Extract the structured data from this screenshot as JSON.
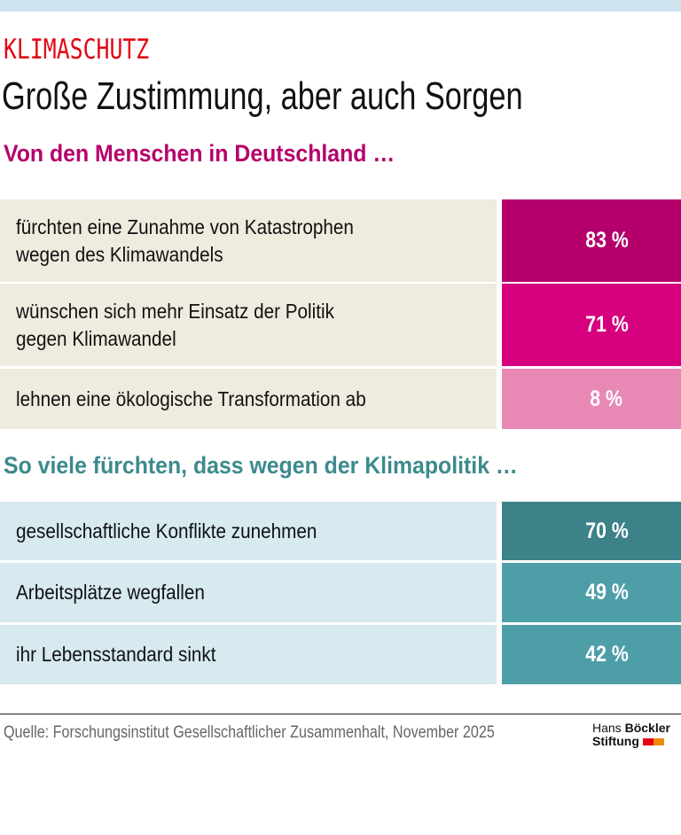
{
  "kicker": "KLIMASCHUTZ",
  "headline": "Große Zustimmung, aber auch Sorgen",
  "chart_data": {
    "type": "table",
    "unit": "%",
    "groups": [
      {
        "title": "Von den Menschen in Deutschland …",
        "title_color": "#b5006b",
        "label_bg": "#eeebdf",
        "rows": [
          {
            "label": "fürchten eine Zunahme von Katastrophen\nwegen des Klimawandels",
            "value": 83,
            "display": "83 %",
            "color": "#b5006b"
          },
          {
            "label": "wünschen sich mehr Einsatz der Politik\ngegen Klimawandel",
            "value": 71,
            "display": "71 %",
            "color": "#d6007f"
          },
          {
            "label": "lehnen eine ökologische Transformation ab",
            "value": 8,
            "display": "8 %",
            "color": "#e888b5"
          }
        ]
      },
      {
        "title": "So viele fürchten, dass wegen der Klimapolitik …",
        "title_color": "#3d8a8d",
        "label_bg": "#d6eaf0",
        "rows": [
          {
            "label": "gesellschaftliche Konflikte zunehmen",
            "value": 70,
            "display": "70 %",
            "color": "#3d8189"
          },
          {
            "label": "Arbeitsplätze wegfallen",
            "value": 49,
            "display": "49 %",
            "color": "#4e9ea8"
          },
          {
            "label": "ihr Lebensstandard sinkt",
            "value": 42,
            "display": "42 %",
            "color": "#4e9ea8"
          }
        ]
      }
    ]
  },
  "source": "Quelle: Forschungsinstitut Gesellschaftlicher Zusammenhalt, November 2025",
  "logo": {
    "line1a": "Hans",
    "line1b": "Böckler",
    "line2": "Stiftung"
  }
}
